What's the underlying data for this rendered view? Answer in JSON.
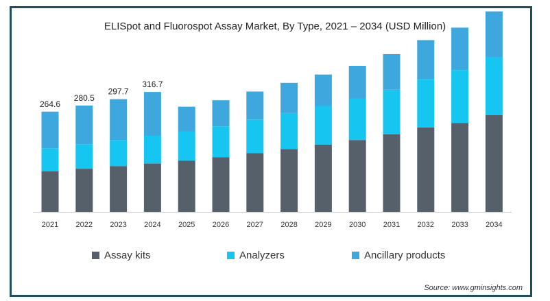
{
  "chart_data": {
    "type": "bar",
    "stacked": true,
    "title": "ELISpot and Fluorospot Assay Market, By Type, 2021 – 2034 (USD Million)",
    "categories": [
      "2021",
      "2022",
      "2023",
      "2024",
      "2025",
      "2026",
      "2027",
      "2028",
      "2029",
      "2030",
      "2031",
      "2032",
      "2033",
      "2034"
    ],
    "series": [
      {
        "name": "Assay kits",
        "color": "#56606b",
        "values": [
          107,
          114,
          121,
          128,
          135,
          144,
          155,
          166,
          178,
          190,
          205,
          223,
          235,
          256
        ]
      },
      {
        "name": "Analyzers",
        "color": "#17c5f1",
        "values": [
          61,
          65,
          69,
          74,
          78,
          82,
          89,
          95,
          102,
          110,
          118,
          128,
          140,
          152
        ]
      },
      {
        "name": "Ancillary products",
        "color": "#3ea7dd",
        "values": [
          97,
          102,
          108,
          115,
          65,
          69,
          74,
          80,
          83,
          86,
          94,
          103,
          112,
          122
        ]
      }
    ],
    "data_labels": [
      {
        "category": "2021",
        "text": "264.6"
      },
      {
        "category": "2022",
        "text": "280.5"
      },
      {
        "category": "2023",
        "text": "297.7"
      },
      {
        "category": "2024",
        "text": "316.7"
      }
    ],
    "ylim": [
      0,
      560
    ],
    "grid": false,
    "legend_position": "bottom"
  },
  "source": "Source: www.gminsights.com"
}
